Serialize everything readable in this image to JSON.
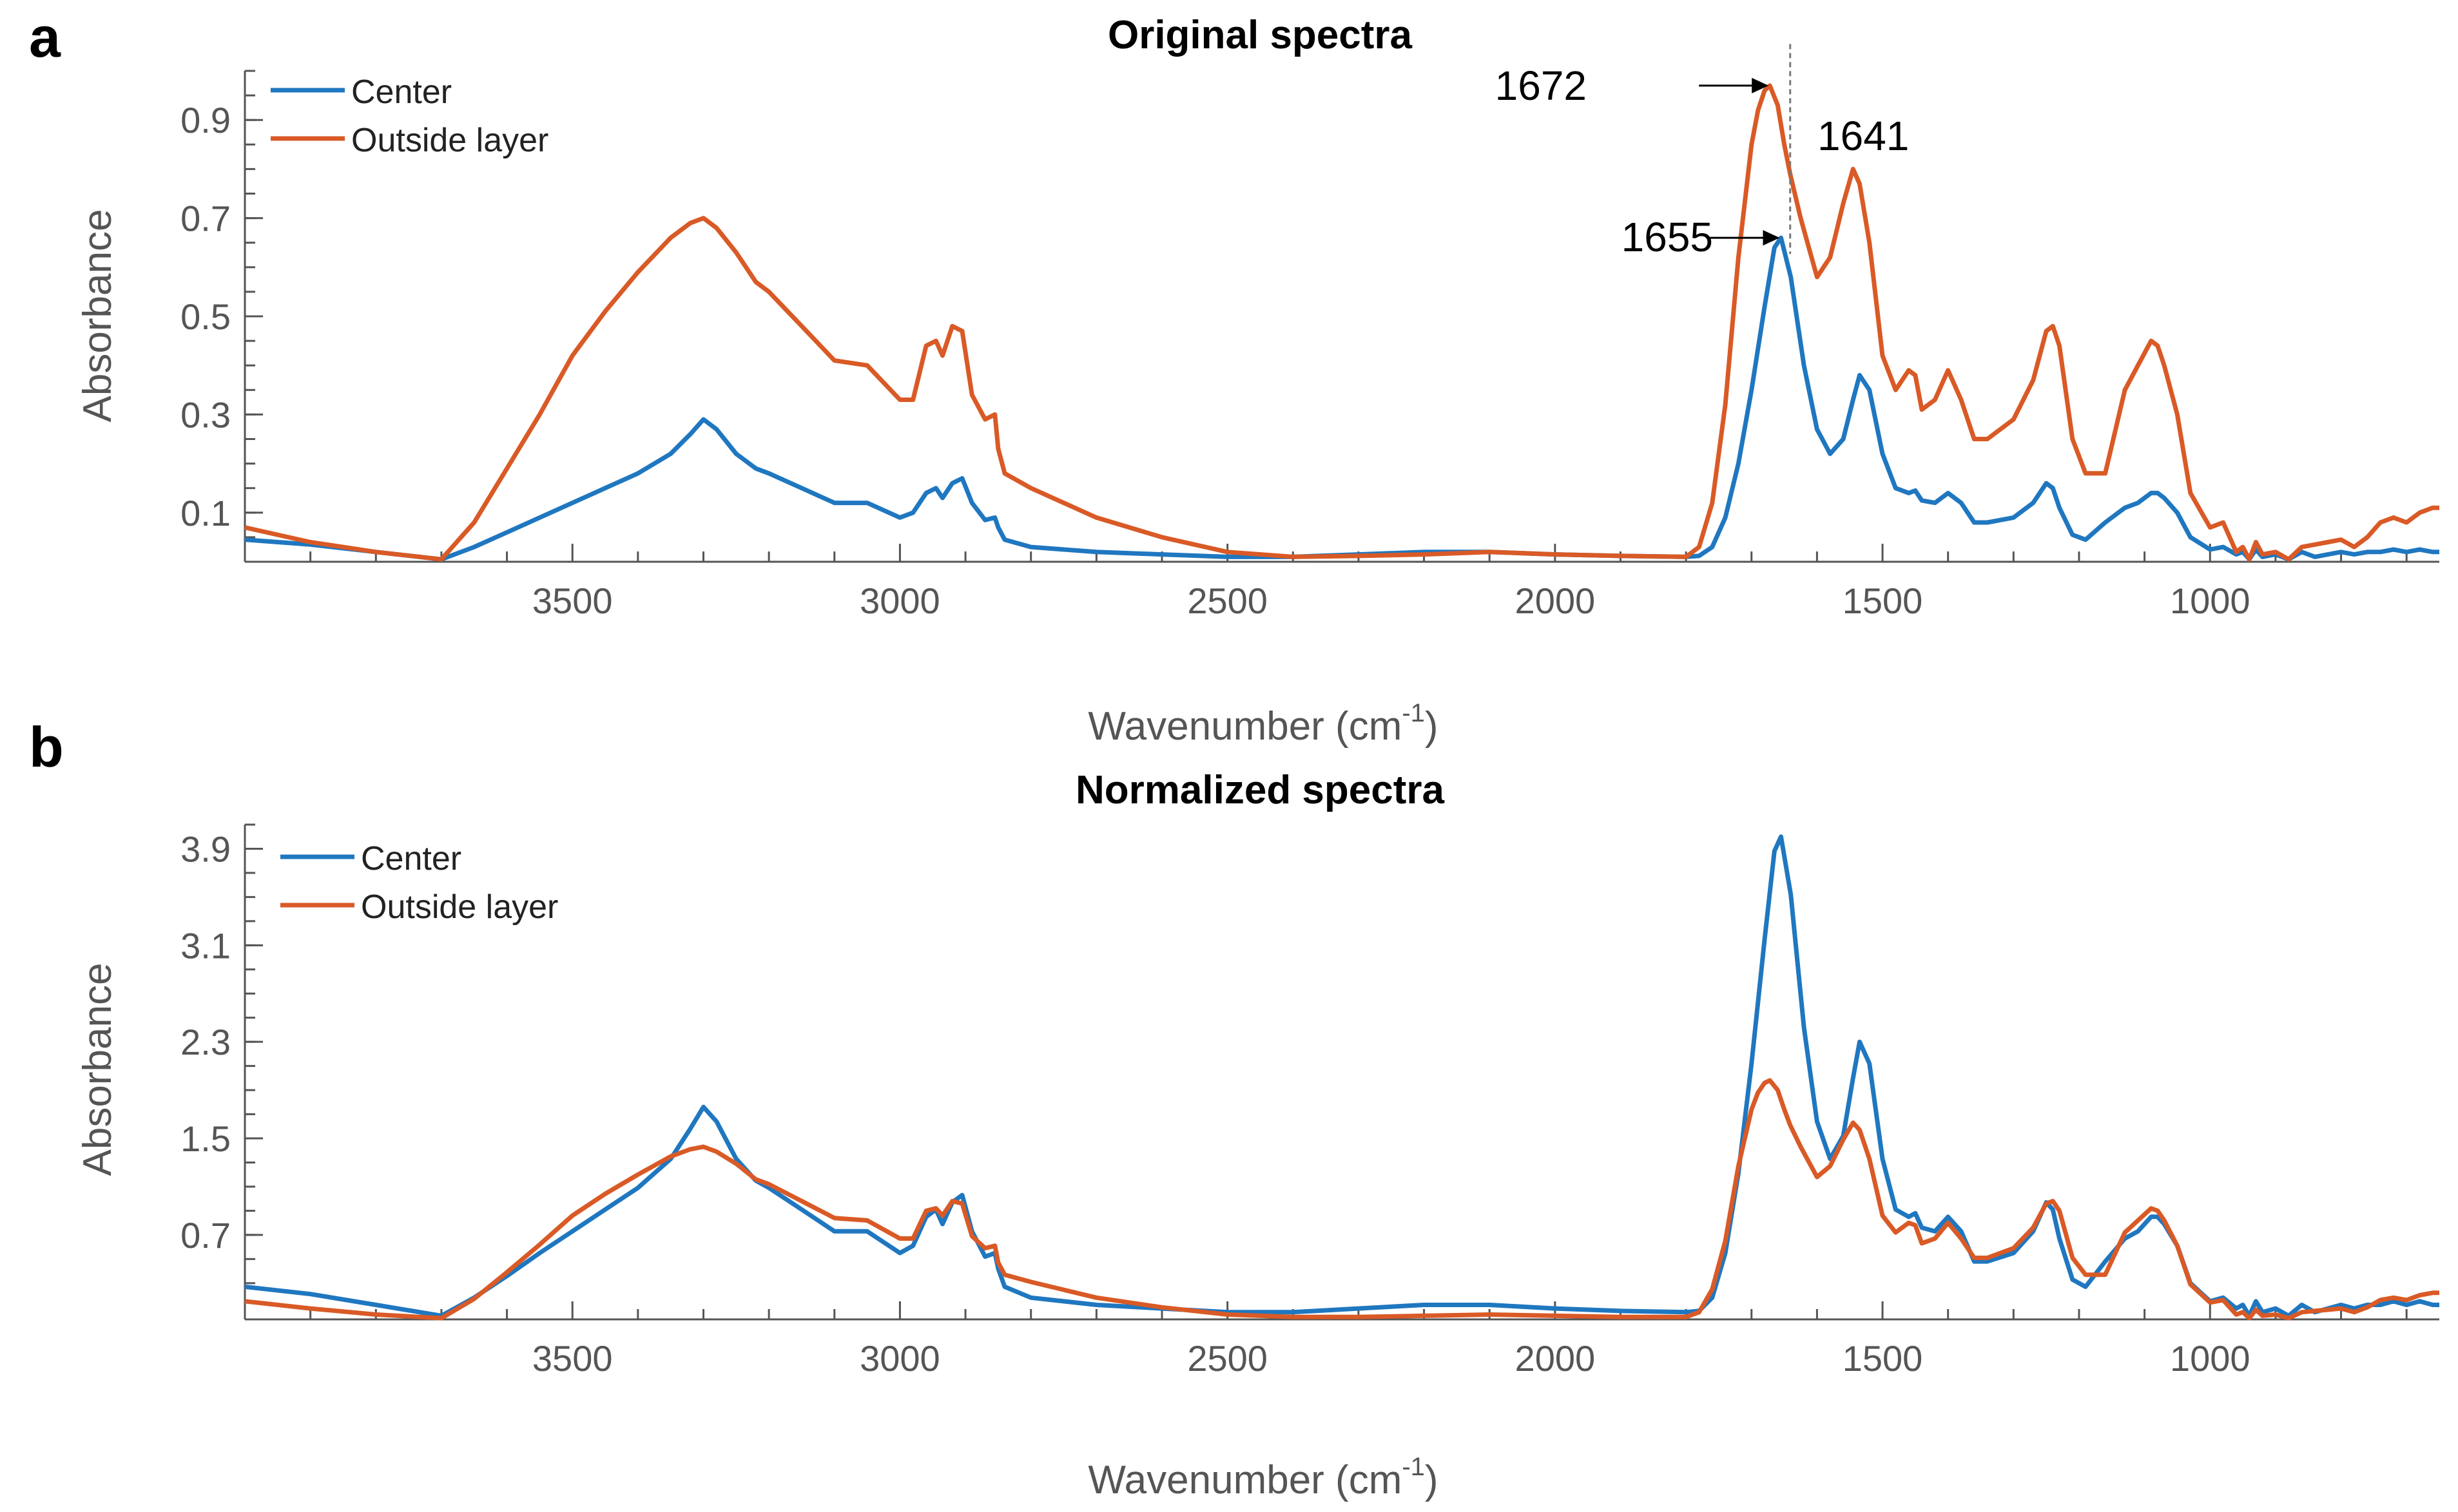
{
  "figure": {
    "panel_a_label": "a",
    "panel_b_label": "b"
  },
  "colors": {
    "center": "#1f77c0",
    "outside": "#d95a26",
    "axis": "#555555",
    "text": "#000000"
  },
  "chart_data": [
    {
      "type": "line",
      "panel": "a",
      "title": "Original spectra",
      "xlabel": "Wavenumber (cm",
      "xlabel_sup": "-1",
      "xlabel_end": ")",
      "ylabel": "Absorbance",
      "xlim": [
        4000,
        650
      ],
      "x_reversed": true,
      "ylim": [
        0.0,
        1.0
      ],
      "xticks": [
        3500,
        3000,
        2500,
        2000,
        1500,
        1000
      ],
      "yticks": [
        0.1,
        0.3,
        0.5,
        0.7,
        0.9
      ],
      "yticklabels": [
        "0.1",
        "0.3",
        "0.5",
        "0.7",
        "0.9"
      ],
      "legend": {
        "placement": "top-left",
        "entries": [
          "Center",
          "Outside layer"
        ]
      },
      "series": [
        {
          "name": "Center",
          "x": [
            4000,
            3900,
            3800,
            3700,
            3650,
            3600,
            3550,
            3500,
            3450,
            3400,
            3350,
            3320,
            3300,
            3280,
            3250,
            3220,
            3200,
            3150,
            3100,
            3050,
            3000,
            2980,
            2960,
            2945,
            2935,
            2920,
            2905,
            2890,
            2870,
            2855,
            2850,
            2840,
            2800,
            2700,
            2600,
            2500,
            2400,
            2300,
            2200,
            2100,
            2000,
            1900,
            1800,
            1780,
            1760,
            1740,
            1720,
            1700,
            1680,
            1665,
            1655,
            1640,
            1620,
            1600,
            1580,
            1560,
            1545,
            1535,
            1520,
            1500,
            1480,
            1460,
            1450,
            1440,
            1420,
            1400,
            1380,
            1360,
            1340,
            1300,
            1270,
            1250,
            1240,
            1230,
            1210,
            1190,
            1160,
            1130,
            1110,
            1090,
            1080,
            1070,
            1050,
            1030,
            1000,
            980,
            960,
            950,
            940,
            930,
            920,
            900,
            880,
            860,
            840,
            820,
            800,
            780,
            760,
            740,
            720,
            700,
            680,
            660,
            650
          ],
          "y": [
            0.045,
            0.035,
            0.02,
            0.005,
            0.03,
            0.06,
            0.09,
            0.12,
            0.15,
            0.18,
            0.22,
            0.26,
            0.29,
            0.27,
            0.22,
            0.19,
            0.18,
            0.15,
            0.12,
            0.12,
            0.09,
            0.1,
            0.14,
            0.15,
            0.13,
            0.16,
            0.17,
            0.12,
            0.085,
            0.09,
            0.07,
            0.045,
            0.03,
            0.02,
            0.015,
            0.01,
            0.01,
            0.015,
            0.02,
            0.02,
            0.015,
            0.012,
            0.01,
            0.012,
            0.03,
            0.09,
            0.2,
            0.35,
            0.52,
            0.64,
            0.66,
            0.58,
            0.4,
            0.27,
            0.22,
            0.25,
            0.33,
            0.38,
            0.35,
            0.22,
            0.15,
            0.14,
            0.145,
            0.125,
            0.12,
            0.14,
            0.12,
            0.08,
            0.08,
            0.09,
            0.12,
            0.16,
            0.15,
            0.11,
            0.055,
            0.045,
            0.08,
            0.11,
            0.12,
            0.14,
            0.14,
            0.13,
            0.1,
            0.05,
            0.025,
            0.03,
            0.015,
            0.02,
            0.005,
            0.025,
            0.01,
            0.015,
            0.005,
            0.02,
            0.01,
            0.015,
            0.02,
            0.015,
            0.02,
            0.02,
            0.025,
            0.02,
            0.025,
            0.02,
            0.02
          ]
        },
        {
          "name": "Outside layer",
          "x": [
            4000,
            3900,
            3800,
            3700,
            3650,
            3600,
            3550,
            3500,
            3450,
            3400,
            3350,
            3320,
            3300,
            3280,
            3250,
            3220,
            3200,
            3150,
            3100,
            3050,
            3000,
            2980,
            2960,
            2945,
            2935,
            2920,
            2905,
            2890,
            2870,
            2855,
            2850,
            2840,
            2800,
            2700,
            2600,
            2500,
            2400,
            2300,
            2200,
            2100,
            2000,
            1900,
            1800,
            1780,
            1760,
            1740,
            1720,
            1700,
            1690,
            1680,
            1672,
            1660,
            1650,
            1641,
            1625,
            1600,
            1580,
            1560,
            1545,
            1535,
            1520,
            1500,
            1480,
            1460,
            1450,
            1440,
            1420,
            1400,
            1380,
            1360,
            1340,
            1300,
            1270,
            1250,
            1240,
            1230,
            1210,
            1190,
            1160,
            1130,
            1110,
            1090,
            1080,
            1070,
            1050,
            1030,
            1000,
            980,
            960,
            950,
            940,
            930,
            920,
            900,
            880,
            860,
            840,
            820,
            800,
            780,
            760,
            740,
            720,
            700,
            680,
            660,
            650
          ],
          "y": [
            0.07,
            0.04,
            0.02,
            0.005,
            0.08,
            0.19,
            0.3,
            0.42,
            0.51,
            0.59,
            0.66,
            0.69,
            0.7,
            0.68,
            0.63,
            0.57,
            0.55,
            0.48,
            0.41,
            0.4,
            0.33,
            0.33,
            0.44,
            0.45,
            0.42,
            0.48,
            0.47,
            0.34,
            0.29,
            0.3,
            0.23,
            0.18,
            0.15,
            0.09,
            0.05,
            0.02,
            0.01,
            0.012,
            0.015,
            0.02,
            0.015,
            0.012,
            0.01,
            0.03,
            0.12,
            0.32,
            0.62,
            0.85,
            0.92,
            0.96,
            0.97,
            0.93,
            0.85,
            0.79,
            0.7,
            0.58,
            0.62,
            0.73,
            0.8,
            0.77,
            0.65,
            0.42,
            0.35,
            0.39,
            0.38,
            0.31,
            0.33,
            0.39,
            0.33,
            0.25,
            0.25,
            0.29,
            0.37,
            0.47,
            0.48,
            0.44,
            0.25,
            0.18,
            0.18,
            0.35,
            0.4,
            0.45,
            0.44,
            0.4,
            0.3,
            0.14,
            0.07,
            0.08,
            0.02,
            0.03,
            0.005,
            0.04,
            0.015,
            0.02,
            0.005,
            0.03,
            0.035,
            0.04,
            0.045,
            0.03,
            0.05,
            0.08,
            0.09,
            0.08,
            0.1,
            0.11,
            0.11
          ]
        }
      ],
      "annotations": [
        {
          "text": "1672",
          "x": 1672,
          "y": 0.97,
          "kind": "arrow"
        },
        {
          "text": "1641",
          "x": 1641,
          "y": 0.93,
          "kind": "dashed-line"
        },
        {
          "text": "1655",
          "x": 1655,
          "y": 0.66,
          "kind": "arrow"
        }
      ]
    },
    {
      "type": "line",
      "panel": "b",
      "title": "Normalized spectra",
      "xlabel": "Wavenumber (cm",
      "xlabel_sup": "-1",
      "xlabel_end": ")",
      "ylabel": "Absorbance",
      "xlim": [
        4000,
        650
      ],
      "x_reversed": true,
      "ylim": [
        0.0,
        4.1
      ],
      "xticks": [
        3500,
        3000,
        2500,
        2000,
        1500,
        1000
      ],
      "yticks": [
        0.7,
        1.5,
        2.3,
        3.1,
        3.9
      ],
      "yticklabels": [
        "0.7",
        "1.5",
        "2.3",
        "3.1",
        "3.9"
      ],
      "legend": {
        "placement": "top-left",
        "entries": [
          "Center",
          "Outside layer"
        ]
      },
      "series": [
        {
          "name": "Center",
          "x": [
            4000,
            3900,
            3800,
            3700,
            3650,
            3600,
            3550,
            3500,
            3450,
            3400,
            3350,
            3320,
            3300,
            3280,
            3250,
            3220,
            3200,
            3150,
            3100,
            3050,
            3000,
            2980,
            2960,
            2945,
            2935,
            2920,
            2905,
            2890,
            2870,
            2855,
            2850,
            2840,
            2800,
            2700,
            2600,
            2500,
            2400,
            2300,
            2200,
            2100,
            2000,
            1900,
            1800,
            1780,
            1760,
            1740,
            1720,
            1700,
            1680,
            1665,
            1655,
            1640,
            1620,
            1600,
            1580,
            1560,
            1545,
            1535,
            1520,
            1500,
            1480,
            1460,
            1450,
            1440,
            1420,
            1400,
            1380,
            1360,
            1340,
            1300,
            1270,
            1250,
            1240,
            1230,
            1210,
            1190,
            1160,
            1130,
            1110,
            1090,
            1080,
            1070,
            1050,
            1030,
            1000,
            980,
            960,
            950,
            940,
            930,
            920,
            900,
            880,
            860,
            840,
            820,
            800,
            780,
            760,
            740,
            720,
            700,
            680,
            660,
            650
          ],
          "y": [
            0.27,
            0.21,
            0.12,
            0.03,
            0.18,
            0.36,
            0.55,
            0.73,
            0.91,
            1.09,
            1.33,
            1.58,
            1.76,
            1.64,
            1.33,
            1.15,
            1.09,
            0.91,
            0.73,
            0.73,
            0.55,
            0.61,
            0.85,
            0.91,
            0.79,
            0.97,
            1.03,
            0.73,
            0.52,
            0.55,
            0.42,
            0.27,
            0.18,
            0.12,
            0.09,
            0.06,
            0.06,
            0.09,
            0.12,
            0.12,
            0.09,
            0.07,
            0.06,
            0.07,
            0.18,
            0.55,
            1.21,
            2.12,
            3.15,
            3.88,
            4.0,
            3.52,
            2.42,
            1.64,
            1.33,
            1.52,
            2.0,
            2.3,
            2.12,
            1.33,
            0.91,
            0.85,
            0.88,
            0.76,
            0.73,
            0.85,
            0.73,
            0.48,
            0.48,
            0.55,
            0.73,
            0.97,
            0.91,
            0.67,
            0.33,
            0.27,
            0.48,
            0.67,
            0.73,
            0.85,
            0.85,
            0.79,
            0.61,
            0.3,
            0.15,
            0.18,
            0.09,
            0.12,
            0.03,
            0.15,
            0.06,
            0.09,
            0.03,
            0.12,
            0.06,
            0.09,
            0.12,
            0.09,
            0.12,
            0.12,
            0.15,
            0.12,
            0.15,
            0.12,
            0.12
          ]
        },
        {
          "name": "Outside layer",
          "x": [
            4000,
            3900,
            3800,
            3700,
            3650,
            3600,
            3550,
            3500,
            3450,
            3400,
            3350,
            3320,
            3300,
            3280,
            3250,
            3220,
            3200,
            3150,
            3100,
            3050,
            3000,
            2980,
            2960,
            2945,
            2935,
            2920,
            2905,
            2890,
            2870,
            2855,
            2850,
            2840,
            2800,
            2700,
            2600,
            2500,
            2400,
            2300,
            2200,
            2100,
            2000,
            1900,
            1800,
            1780,
            1760,
            1740,
            1720,
            1700,
            1690,
            1680,
            1672,
            1660,
            1650,
            1641,
            1625,
            1600,
            1580,
            1560,
            1545,
            1535,
            1520,
            1500,
            1480,
            1460,
            1450,
            1440,
            1420,
            1400,
            1380,
            1360,
            1340,
            1300,
            1270,
            1250,
            1240,
            1230,
            1210,
            1190,
            1160,
            1130,
            1110,
            1090,
            1080,
            1070,
            1050,
            1030,
            1000,
            980,
            960,
            950,
            940,
            930,
            920,
            900,
            880,
            860,
            840,
            820,
            800,
            780,
            760,
            740,
            720,
            700,
            680,
            660,
            650
          ],
          "y": [
            0.15,
            0.09,
            0.04,
            0.01,
            0.17,
            0.39,
            0.62,
            0.86,
            1.04,
            1.2,
            1.35,
            1.41,
            1.43,
            1.39,
            1.29,
            1.16,
            1.12,
            0.98,
            0.84,
            0.82,
            0.67,
            0.67,
            0.9,
            0.92,
            0.86,
            0.98,
            0.96,
            0.69,
            0.59,
            0.61,
            0.47,
            0.37,
            0.31,
            0.18,
            0.1,
            0.04,
            0.02,
            0.02,
            0.03,
            0.04,
            0.03,
            0.02,
            0.02,
            0.06,
            0.25,
            0.65,
            1.27,
            1.74,
            1.88,
            1.96,
            1.98,
            1.9,
            1.74,
            1.61,
            1.43,
            1.18,
            1.27,
            1.49,
            1.63,
            1.57,
            1.33,
            0.86,
            0.72,
            0.8,
            0.78,
            0.63,
            0.67,
            0.8,
            0.67,
            0.51,
            0.51,
            0.59,
            0.76,
            0.96,
            0.98,
            0.9,
            0.51,
            0.37,
            0.37,
            0.72,
            0.82,
            0.92,
            0.9,
            0.82,
            0.61,
            0.29,
            0.14,
            0.16,
            0.04,
            0.06,
            0.01,
            0.08,
            0.03,
            0.04,
            0.01,
            0.06,
            0.07,
            0.08,
            0.09,
            0.06,
            0.1,
            0.16,
            0.18,
            0.16,
            0.2,
            0.22,
            0.22
          ]
        }
      ],
      "annotations": []
    }
  ]
}
